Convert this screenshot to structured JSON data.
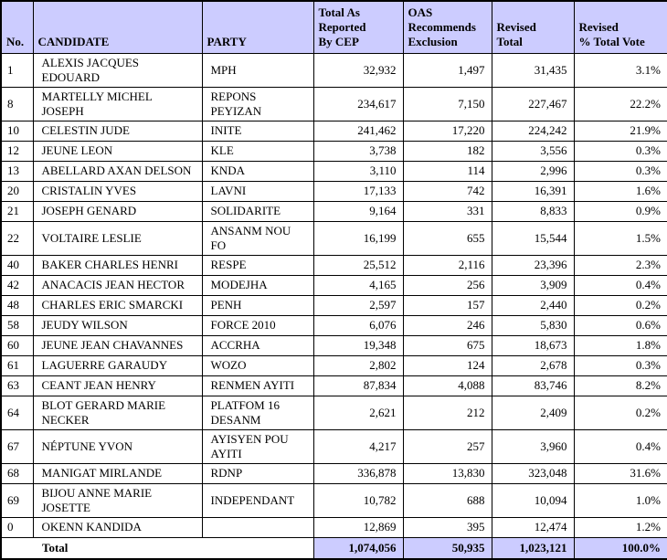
{
  "colors": {
    "header_bg": "#ccccff",
    "total_bg": "#ccccff",
    "border": "#000000",
    "text": "#000000",
    "background": "#ffffff"
  },
  "table": {
    "headers": {
      "no": "No.",
      "candidate": "CANDIDATE",
      "party": "PARTY",
      "cep_total": "Total As\nReported\nBy CEP",
      "oas_exclusion": "OAS\nRecommends\nExclusion",
      "revised_total": "Revised\nTotal",
      "revised_pct": "Revised\n% Total Vote"
    },
    "rows": [
      {
        "no": "1",
        "candidate": "ALEXIS JACQUES EDOUARD",
        "party": "MPH",
        "cep_total": "32,932",
        "oas_exclusion": "1,497",
        "revised_total": "31,435",
        "revised_pct": "3.1%"
      },
      {
        "no": "8",
        "candidate": "MARTELLY MICHEL JOSEPH",
        "party": "REPONS PEYIZAN",
        "cep_total": "234,617",
        "oas_exclusion": "7,150",
        "revised_total": "227,467",
        "revised_pct": "22.2%"
      },
      {
        "no": "10",
        "candidate": "CELESTIN JUDE",
        "party": "INITE",
        "cep_total": "241,462",
        "oas_exclusion": "17,220",
        "revised_total": "224,242",
        "revised_pct": "21.9%"
      },
      {
        "no": "12",
        "candidate": "JEUNE LEON",
        "party": "KLE",
        "cep_total": "3,738",
        "oas_exclusion": "182",
        "revised_total": "3,556",
        "revised_pct": "0.3%"
      },
      {
        "no": "13",
        "candidate": "ABELLARD AXAN DELSON",
        "party": "KNDA",
        "cep_total": "3,110",
        "oas_exclusion": "114",
        "revised_total": "2,996",
        "revised_pct": "0.3%"
      },
      {
        "no": "20",
        "candidate": "CRISTALIN YVES",
        "party": "LAVNI",
        "cep_total": "17,133",
        "oas_exclusion": "742",
        "revised_total": "16,391",
        "revised_pct": "1.6%"
      },
      {
        "no": "21",
        "candidate": "JOSEPH GENARD",
        "party": "SOLIDARITE",
        "cep_total": "9,164",
        "oas_exclusion": "331",
        "revised_total": "8,833",
        "revised_pct": "0.9%"
      },
      {
        "no": "22",
        "candidate": "VOLTAIRE LESLIE",
        "party": "ANSANM NOU FO",
        "cep_total": "16,199",
        "oas_exclusion": "655",
        "revised_total": "15,544",
        "revised_pct": "1.5%"
      },
      {
        "no": "40",
        "candidate": "BAKER CHARLES HENRI",
        "party": "RESPE",
        "cep_total": "25,512",
        "oas_exclusion": "2,116",
        "revised_total": "23,396",
        "revised_pct": "2.3%"
      },
      {
        "no": "42",
        "candidate": "ANACACIS JEAN HECTOR",
        "party": "MODEJHA",
        "cep_total": "4,165",
        "oas_exclusion": "256",
        "revised_total": "3,909",
        "revised_pct": "0.4%"
      },
      {
        "no": "48",
        "candidate": "CHARLES ERIC SMARCKI",
        "party": "PENH",
        "cep_total": "2,597",
        "oas_exclusion": "157",
        "revised_total": "2,440",
        "revised_pct": "0.2%"
      },
      {
        "no": "58",
        "candidate": "JEUDY WILSON",
        "party": "FORCE 2010",
        "cep_total": "6,076",
        "oas_exclusion": "246",
        "revised_total": "5,830",
        "revised_pct": "0.6%"
      },
      {
        "no": "60",
        "candidate": "JEUNE JEAN CHAVANNES",
        "party": "ACCRHA",
        "cep_total": "19,348",
        "oas_exclusion": "675",
        "revised_total": "18,673",
        "revised_pct": "1.8%"
      },
      {
        "no": "61",
        "candidate": "LAGUERRE GARAUDY",
        "party": "WOZO",
        "cep_total": "2,802",
        "oas_exclusion": "124",
        "revised_total": "2,678",
        "revised_pct": "0.3%"
      },
      {
        "no": "63",
        "candidate": "CEANT JEAN HENRY",
        "party": "RENMEN AYITI",
        "cep_total": "87,834",
        "oas_exclusion": "4,088",
        "revised_total": "83,746",
        "revised_pct": "8.2%"
      },
      {
        "no": "64",
        "candidate": "BLOT GERARD MARIE\nNECKER",
        "party": "PLATFOM 16\nDESANM",
        "cep_total": "2,621",
        "oas_exclusion": "212",
        "revised_total": "2,409",
        "revised_pct": "0.2%"
      },
      {
        "no": "67",
        "candidate": "NÉPTUNE YVON",
        "party": "AYISYEN POU\nAYITI",
        "cep_total": "4,217",
        "oas_exclusion": "257",
        "revised_total": "3,960",
        "revised_pct": "0.4%"
      },
      {
        "no": "68",
        "candidate": "MANIGAT MIRLANDE",
        "party": "RDNP",
        "cep_total": "336,878",
        "oas_exclusion": "13,830",
        "revised_total": "323,048",
        "revised_pct": "31.6%"
      },
      {
        "no": "69",
        "candidate": "BIJOU ANNE MARIE JOSETTE",
        "party": "INDEPENDANT",
        "cep_total": "10,782",
        "oas_exclusion": "688",
        "revised_total": "10,094",
        "revised_pct": "1.0%"
      },
      {
        "no": "0",
        "candidate": "OKENN KANDIDA",
        "party": "",
        "cep_total": "12,869",
        "oas_exclusion": "395",
        "revised_total": "12,474",
        "revised_pct": "1.2%"
      }
    ],
    "total_row": {
      "label": "Total",
      "cep_total": "1,074,056",
      "oas_exclusion": "50,935",
      "revised_total": "1,023,121",
      "revised_pct": "100.0%"
    }
  }
}
